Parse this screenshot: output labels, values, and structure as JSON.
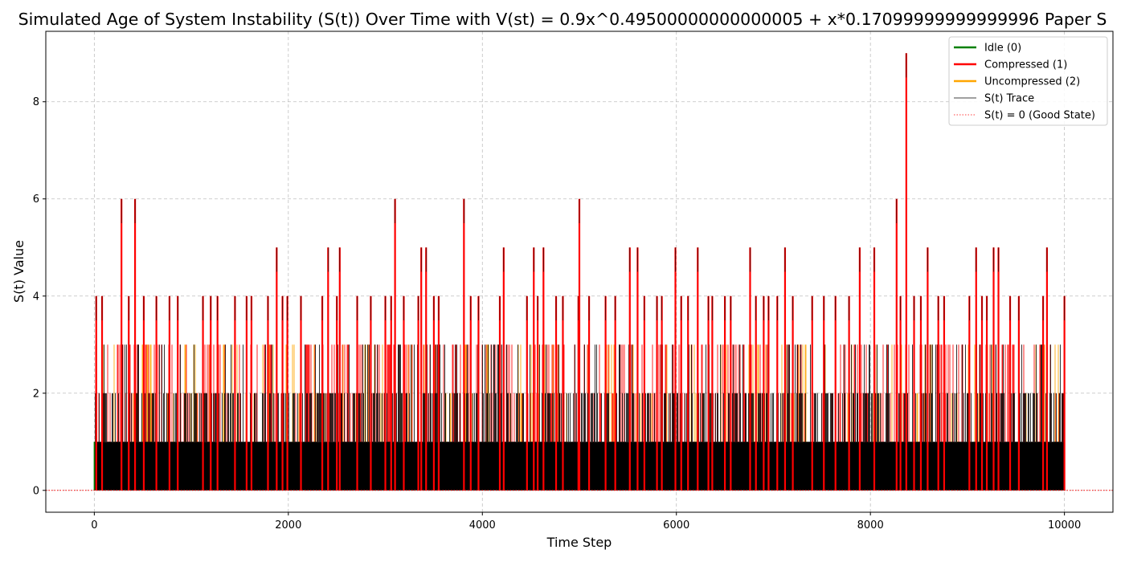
{
  "chart_data": {
    "type": "line",
    "title": "Simulated Age of System Instability (S(t)) Over Time with V(st) = 0.9x^0.49500000000000005 + x*0.17099999999999996 Paper S",
    "xlabel": "Time Step",
    "ylabel": "S(t) Value",
    "xlim": [
      -500,
      10500
    ],
    "ylim": [
      -0.45,
      9.45
    ],
    "xticks": [
      0,
      2000,
      4000,
      6000,
      8000,
      10000
    ],
    "yticks": [
      0,
      2,
      4,
      6,
      8
    ],
    "grid": true,
    "legend_position": "top-right",
    "legend": [
      {
        "label": "Idle (0)",
        "color": "#008000",
        "style": "solid"
      },
      {
        "label": "Compressed (1)",
        "color": "#ff0000",
        "style": "solid"
      },
      {
        "label": "Uncompressed (2)",
        "color": "#ffa500",
        "style": "solid"
      },
      {
        "label": "S(t) Trace",
        "color": "#000000",
        "style": "thin"
      },
      {
        "label": "S(t) = 0 (Good State)",
        "color": "#ff0000",
        "style": "dotted"
      }
    ],
    "x_range": [
      0,
      10000
    ],
    "series": [
      {
        "name": "S(t) Trace",
        "note_level_band": [
          0,
          3
        ]
      }
    ],
    "peaks": [
      {
        "x": 20,
        "y": 4
      },
      {
        "x": 80,
        "y": 4
      },
      {
        "x": 280,
        "y": 6
      },
      {
        "x": 355,
        "y": 4
      },
      {
        "x": 420,
        "y": 6
      },
      {
        "x": 510,
        "y": 4
      },
      {
        "x": 640,
        "y": 4
      },
      {
        "x": 775,
        "y": 4
      },
      {
        "x": 860,
        "y": 4
      },
      {
        "x": 1120,
        "y": 4
      },
      {
        "x": 1200,
        "y": 4
      },
      {
        "x": 1270,
        "y": 4
      },
      {
        "x": 1450,
        "y": 4
      },
      {
        "x": 1570,
        "y": 4
      },
      {
        "x": 1620,
        "y": 4
      },
      {
        "x": 1790,
        "y": 4
      },
      {
        "x": 1880,
        "y": 5
      },
      {
        "x": 1940,
        "y": 4
      },
      {
        "x": 1990,
        "y": 4
      },
      {
        "x": 2130,
        "y": 4
      },
      {
        "x": 2350,
        "y": 4
      },
      {
        "x": 2410,
        "y": 5
      },
      {
        "x": 2500,
        "y": 4
      },
      {
        "x": 2530,
        "y": 5
      },
      {
        "x": 2710,
        "y": 4
      },
      {
        "x": 2850,
        "y": 4
      },
      {
        "x": 3000,
        "y": 4
      },
      {
        "x": 3060,
        "y": 4
      },
      {
        "x": 3100,
        "y": 6
      },
      {
        "x": 3190,
        "y": 4
      },
      {
        "x": 3340,
        "y": 4
      },
      {
        "x": 3370,
        "y": 5
      },
      {
        "x": 3420,
        "y": 5
      },
      {
        "x": 3500,
        "y": 4
      },
      {
        "x": 3550,
        "y": 4
      },
      {
        "x": 3810,
        "y": 6
      },
      {
        "x": 3880,
        "y": 4
      },
      {
        "x": 3960,
        "y": 4
      },
      {
        "x": 4180,
        "y": 4
      },
      {
        "x": 4220,
        "y": 5
      },
      {
        "x": 4460,
        "y": 4
      },
      {
        "x": 4530,
        "y": 5
      },
      {
        "x": 4570,
        "y": 4
      },
      {
        "x": 4630,
        "y": 5
      },
      {
        "x": 4760,
        "y": 4
      },
      {
        "x": 4830,
        "y": 4
      },
      {
        "x": 4990,
        "y": 4
      },
      {
        "x": 5000,
        "y": 6
      },
      {
        "x": 5100,
        "y": 4
      },
      {
        "x": 5270,
        "y": 4
      },
      {
        "x": 5370,
        "y": 4
      },
      {
        "x": 5520,
        "y": 5
      },
      {
        "x": 5600,
        "y": 5
      },
      {
        "x": 5670,
        "y": 4
      },
      {
        "x": 5800,
        "y": 4
      },
      {
        "x": 5850,
        "y": 4
      },
      {
        "x": 5990,
        "y": 5
      },
      {
        "x": 6050,
        "y": 4
      },
      {
        "x": 6120,
        "y": 4
      },
      {
        "x": 6220,
        "y": 5
      },
      {
        "x": 6330,
        "y": 4
      },
      {
        "x": 6370,
        "y": 4
      },
      {
        "x": 6500,
        "y": 4
      },
      {
        "x": 6560,
        "y": 4
      },
      {
        "x": 6760,
        "y": 5
      },
      {
        "x": 6820,
        "y": 4
      },
      {
        "x": 6900,
        "y": 4
      },
      {
        "x": 6950,
        "y": 4
      },
      {
        "x": 7040,
        "y": 4
      },
      {
        "x": 7120,
        "y": 5
      },
      {
        "x": 7200,
        "y": 4
      },
      {
        "x": 7400,
        "y": 4
      },
      {
        "x": 7520,
        "y": 4
      },
      {
        "x": 7640,
        "y": 4
      },
      {
        "x": 7780,
        "y": 4
      },
      {
        "x": 7890,
        "y": 5
      },
      {
        "x": 8040,
        "y": 5
      },
      {
        "x": 8270,
        "y": 6
      },
      {
        "x": 8310,
        "y": 4
      },
      {
        "x": 8370,
        "y": 9
      },
      {
        "x": 8450,
        "y": 4
      },
      {
        "x": 8520,
        "y": 4
      },
      {
        "x": 8590,
        "y": 5
      },
      {
        "x": 8700,
        "y": 4
      },
      {
        "x": 8760,
        "y": 4
      },
      {
        "x": 9020,
        "y": 4
      },
      {
        "x": 9090,
        "y": 5
      },
      {
        "x": 9150,
        "y": 4
      },
      {
        "x": 9200,
        "y": 4
      },
      {
        "x": 9270,
        "y": 5
      },
      {
        "x": 9320,
        "y": 5
      },
      {
        "x": 9440,
        "y": 4
      },
      {
        "x": 9530,
        "y": 4
      },
      {
        "x": 9780,
        "y": 4
      },
      {
        "x": 9820,
        "y": 5
      },
      {
        "x": 10000,
        "y": 4
      }
    ]
  }
}
